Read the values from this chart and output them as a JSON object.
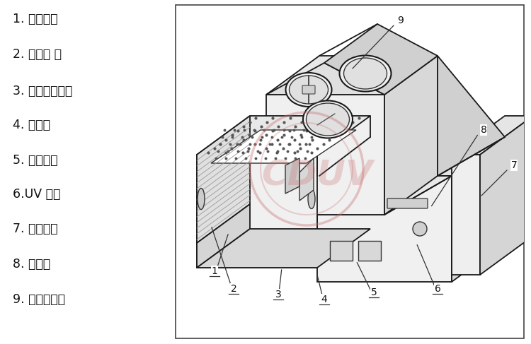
{
  "background_color": "#ffffff",
  "legend_items": [
    "1. 传送网带",
    "2. 进料棍 、",
    "3. 网带调节部位",
    "4. 挡光板",
    "5. 控制面板",
    "6.UV 灯室",
    "7. 传送部位",
    "8. 排风口",
    "9. 排风机部位"
  ],
  "watermark_text": "CDUV",
  "watermark_color": "#c87070",
  "watermark_alpha": 0.28,
  "line_color": "#1a1a1a",
  "line_width": 1.3
}
